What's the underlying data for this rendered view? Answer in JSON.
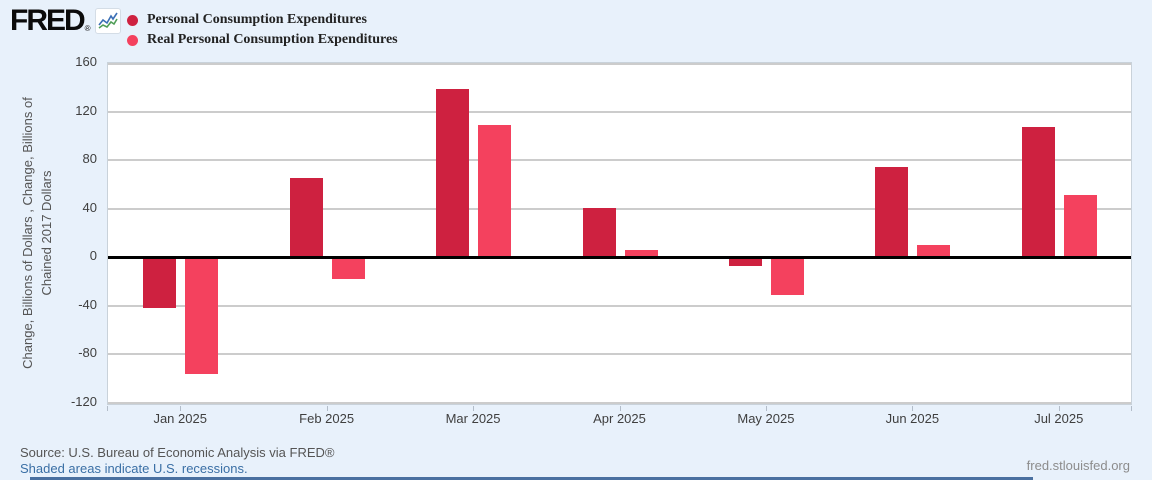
{
  "header": {
    "logo_text": "FRED",
    "logo_reg": "®",
    "spark_icon": "fred-sparkline-icon"
  },
  "chart_data": {
    "type": "bar",
    "title": "",
    "categories": [
      "Jan 2025",
      "Feb 2025",
      "Mar 2025",
      "Apr 2025",
      "May 2025",
      "Jun 2025",
      "Jul 2025"
    ],
    "series": [
      {
        "name": "Personal Consumption Expenditures",
        "color": "#ce2140",
        "values": [
          -41,
          65,
          139,
          41,
          -6,
          74,
          107
        ]
      },
      {
        "name": "Real Personal Consumption Expenditures",
        "color": "#f4415e",
        "values": [
          -95,
          -17,
          109,
          6,
          -30,
          10,
          51
        ]
      }
    ],
    "ylabel_lines": [
      "Change, Billions of Dollars , Change, Billions of",
      "Chained 2017 Dollars"
    ],
    "yticks": [
      160,
      120,
      80,
      40,
      0,
      -40,
      -80,
      -120
    ],
    "ylim": [
      -120,
      160
    ],
    "grid": true,
    "legend_position": "top-left",
    "colors": {
      "gridline": "#cccccc",
      "zero_line": "#000000",
      "plot_bg": "#ffffff",
      "page_bg": "#e8f1fb"
    }
  },
  "footer": {
    "source_line": "Source: U.S. Bureau of Economic Analysis via FRED®",
    "recession_note": "Shaded areas indicate U.S. recessions.",
    "site": "fred.stlouisfed.org"
  }
}
